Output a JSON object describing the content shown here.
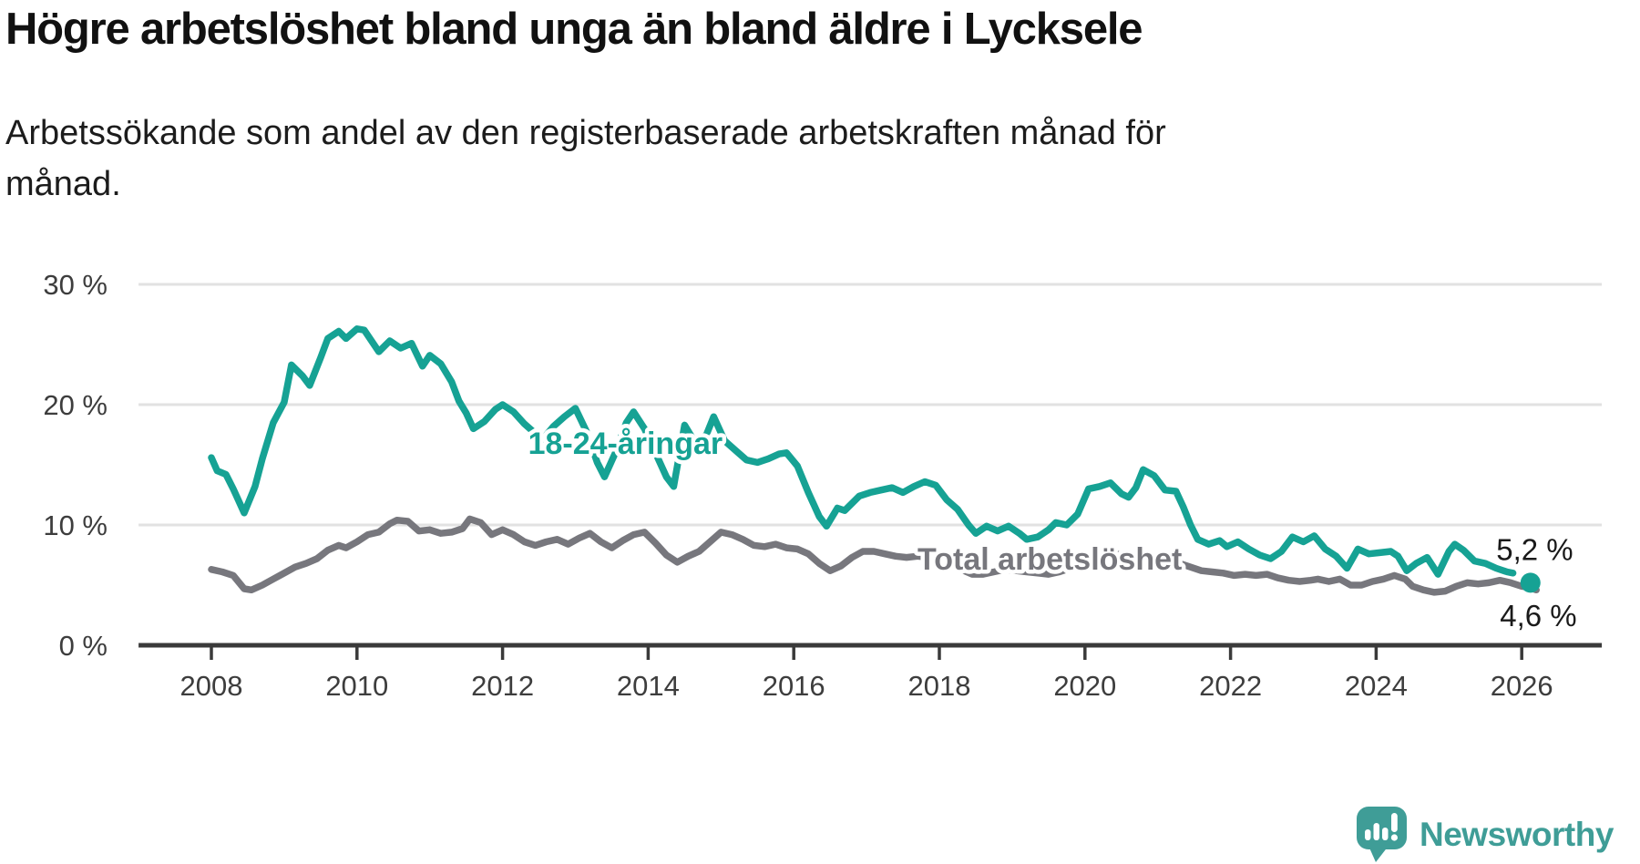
{
  "header": {
    "title": "Högre arbetslöshet bland unga än bland äldre i Lycksele",
    "subtitle_lines": [
      "Arbetssökande som andel av den registerbaserade arbetskraften månad för",
      "månad."
    ]
  },
  "footer": {
    "brand": "Newsworthy",
    "logo_icon": "newsworthy-speech-bubble-bar-chart-icon"
  },
  "colors": {
    "accent_teal": "#16a294",
    "line_gray": "#77777d",
    "grid": "#e2e2e2",
    "axis": "#3a3a3a",
    "text": "#1a1a1a",
    "brand_teal": "#3f9d97"
  },
  "chart_data": {
    "type": "line",
    "title": "Högre arbetslöshet bland unga än bland äldre i Lycksele",
    "xlabel": "",
    "ylabel": "",
    "unit": "%",
    "ylim": [
      0,
      32
    ],
    "yticks": [
      0,
      10,
      20,
      30
    ],
    "ytick_suffix": " %",
    "xticks": [
      2008,
      2010,
      2012,
      2014,
      2016,
      2018,
      2020,
      2022,
      2024,
      2026
    ],
    "xlim": [
      2007.0,
      2027.1
    ],
    "grid": "horizontal",
    "legend": "inline-labels",
    "series": [
      {
        "name": "Total arbetslöshet",
        "slug": "total-line",
        "color": "#77777d",
        "end_value_label": "4,6 %",
        "points": [
          [
            2008.0,
            6.3
          ],
          [
            2008.15,
            6.1
          ],
          [
            2008.3,
            5.8
          ],
          [
            2008.45,
            4.7
          ],
          [
            2008.55,
            4.6
          ],
          [
            2008.7,
            5.0
          ],
          [
            2008.85,
            5.5
          ],
          [
            2009.0,
            6.0
          ],
          [
            2009.15,
            6.5
          ],
          [
            2009.3,
            6.8
          ],
          [
            2009.45,
            7.2
          ],
          [
            2009.6,
            7.9
          ],
          [
            2009.75,
            8.3
          ],
          [
            2009.85,
            8.1
          ],
          [
            2010.0,
            8.6
          ],
          [
            2010.15,
            9.2
          ],
          [
            2010.3,
            9.4
          ],
          [
            2010.45,
            10.1
          ],
          [
            2010.55,
            10.4
          ],
          [
            2010.7,
            10.3
          ],
          [
            2010.85,
            9.5
          ],
          [
            2011.0,
            9.6
          ],
          [
            2011.15,
            9.3
          ],
          [
            2011.3,
            9.4
          ],
          [
            2011.45,
            9.7
          ],
          [
            2011.55,
            10.5
          ],
          [
            2011.7,
            10.2
          ],
          [
            2011.85,
            9.2
          ],
          [
            2012.0,
            9.6
          ],
          [
            2012.15,
            9.2
          ],
          [
            2012.3,
            8.6
          ],
          [
            2012.45,
            8.3
          ],
          [
            2012.6,
            8.6
          ],
          [
            2012.75,
            8.8
          ],
          [
            2012.9,
            8.4
          ],
          [
            2013.05,
            8.9
          ],
          [
            2013.2,
            9.3
          ],
          [
            2013.35,
            8.6
          ],
          [
            2013.5,
            8.1
          ],
          [
            2013.65,
            8.7
          ],
          [
            2013.8,
            9.2
          ],
          [
            2013.95,
            9.4
          ],
          [
            2014.1,
            8.5
          ],
          [
            2014.25,
            7.5
          ],
          [
            2014.4,
            6.9
          ],
          [
            2014.55,
            7.4
          ],
          [
            2014.7,
            7.8
          ],
          [
            2014.85,
            8.6
          ],
          [
            2015.0,
            9.4
          ],
          [
            2015.15,
            9.2
          ],
          [
            2015.3,
            8.8
          ],
          [
            2015.45,
            8.3
          ],
          [
            2015.6,
            8.2
          ],
          [
            2015.75,
            8.4
          ],
          [
            2015.9,
            8.1
          ],
          [
            2016.05,
            8.0
          ],
          [
            2016.2,
            7.6
          ],
          [
            2016.35,
            6.8
          ],
          [
            2016.5,
            6.2
          ],
          [
            2016.65,
            6.6
          ],
          [
            2016.8,
            7.3
          ],
          [
            2016.95,
            7.8
          ],
          [
            2017.1,
            7.8
          ],
          [
            2017.25,
            7.6
          ],
          [
            2017.4,
            7.4
          ],
          [
            2017.55,
            7.3
          ],
          [
            2017.7,
            7.4
          ],
          [
            2017.85,
            7.3
          ],
          [
            2018.0,
            7.0
          ],
          [
            2018.15,
            6.7
          ],
          [
            2018.3,
            6.3
          ],
          [
            2018.45,
            5.9
          ],
          [
            2018.6,
            5.9
          ],
          [
            2018.75,
            6.1
          ],
          [
            2018.9,
            6.3
          ],
          [
            2019.05,
            6.2
          ],
          [
            2019.2,
            6.1
          ],
          [
            2019.35,
            6.0
          ],
          [
            2019.5,
            5.9
          ],
          [
            2019.65,
            6.1
          ],
          [
            2019.8,
            6.4
          ],
          [
            2019.95,
            6.8
          ],
          [
            2020.1,
            7.2
          ],
          [
            2020.25,
            7.5
          ],
          [
            2020.4,
            7.6
          ],
          [
            2020.55,
            7.5
          ],
          [
            2020.7,
            7.3
          ],
          [
            2020.85,
            7.4
          ],
          [
            2021.0,
            7.3
          ],
          [
            2021.15,
            7.1
          ],
          [
            2021.3,
            6.8
          ],
          [
            2021.45,
            6.5
          ],
          [
            2021.6,
            6.2
          ],
          [
            2021.75,
            6.1
          ],
          [
            2021.9,
            6.0
          ],
          [
            2022.05,
            5.8
          ],
          [
            2022.2,
            5.9
          ],
          [
            2022.35,
            5.8
          ],
          [
            2022.5,
            5.9
          ],
          [
            2022.65,
            5.6
          ],
          [
            2022.8,
            5.4
          ],
          [
            2022.95,
            5.3
          ],
          [
            2023.1,
            5.4
          ],
          [
            2023.2,
            5.5
          ],
          [
            2023.35,
            5.3
          ],
          [
            2023.5,
            5.5
          ],
          [
            2023.65,
            5.0
          ],
          [
            2023.8,
            5.0
          ],
          [
            2023.95,
            5.3
          ],
          [
            2024.1,
            5.5
          ],
          [
            2024.25,
            5.8
          ],
          [
            2024.4,
            5.5
          ],
          [
            2024.5,
            4.9
          ],
          [
            2024.65,
            4.6
          ],
          [
            2024.8,
            4.4
          ],
          [
            2024.95,
            4.5
          ],
          [
            2025.1,
            4.9
          ],
          [
            2025.25,
            5.2
          ],
          [
            2025.4,
            5.1
          ],
          [
            2025.55,
            5.2
          ],
          [
            2025.7,
            5.4
          ],
          [
            2025.85,
            5.2
          ],
          [
            2026.0,
            4.9
          ],
          [
            2026.1,
            4.8
          ],
          [
            2026.2,
            4.6
          ]
        ]
      },
      {
        "name": "18-24-åringar",
        "slug": "youth-line",
        "color": "#16a294",
        "end_value_label": "5,2 %",
        "end_dot": {
          "x": 2026.12,
          "y": 5.2,
          "r": 11
        },
        "points": [
          [
            2008.0,
            15.6
          ],
          [
            2008.08,
            14.5
          ],
          [
            2008.2,
            14.2
          ],
          [
            2008.3,
            13.0
          ],
          [
            2008.45,
            11.0
          ],
          [
            2008.6,
            13.2
          ],
          [
            2008.7,
            15.5
          ],
          [
            2008.85,
            18.5
          ],
          [
            2009.0,
            20.2
          ],
          [
            2009.1,
            23.3
          ],
          [
            2009.25,
            22.4
          ],
          [
            2009.35,
            21.6
          ],
          [
            2009.5,
            23.9
          ],
          [
            2009.6,
            25.5
          ],
          [
            2009.75,
            26.1
          ],
          [
            2009.85,
            25.5
          ],
          [
            2010.0,
            26.3
          ],
          [
            2010.1,
            26.2
          ],
          [
            2010.3,
            24.4
          ],
          [
            2010.45,
            25.3
          ],
          [
            2010.6,
            24.7
          ],
          [
            2010.75,
            25.1
          ],
          [
            2010.9,
            23.2
          ],
          [
            2011.0,
            24.1
          ],
          [
            2011.15,
            23.4
          ],
          [
            2011.3,
            21.9
          ],
          [
            2011.4,
            20.3
          ],
          [
            2011.5,
            19.3
          ],
          [
            2011.6,
            18.0
          ],
          [
            2011.75,
            18.6
          ],
          [
            2011.9,
            19.6
          ],
          [
            2012.0,
            20.0
          ],
          [
            2012.15,
            19.4
          ],
          [
            2012.3,
            18.4
          ],
          [
            2012.45,
            17.6
          ],
          [
            2012.55,
            17.1
          ],
          [
            2012.7,
            18.2
          ],
          [
            2012.85,
            19.0
          ],
          [
            2013.0,
            19.7
          ],
          [
            2013.15,
            17.8
          ],
          [
            2013.3,
            15.2
          ],
          [
            2013.4,
            14.0
          ],
          [
            2013.55,
            16.0
          ],
          [
            2013.7,
            18.5
          ],
          [
            2013.8,
            19.4
          ],
          [
            2013.95,
            18.0
          ],
          [
            2014.1,
            16.0
          ],
          [
            2014.25,
            14.0
          ],
          [
            2014.35,
            13.2
          ],
          [
            2014.5,
            18.3
          ],
          [
            2014.65,
            16.8
          ],
          [
            2014.8,
            17.5
          ],
          [
            2014.9,
            19.0
          ],
          [
            2015.05,
            17.0
          ],
          [
            2015.2,
            16.2
          ],
          [
            2015.35,
            15.4
          ],
          [
            2015.5,
            15.2
          ],
          [
            2015.65,
            15.5
          ],
          [
            2015.8,
            15.9
          ],
          [
            2015.9,
            16.0
          ],
          [
            2016.05,
            14.9
          ],
          [
            2016.2,
            12.7
          ],
          [
            2016.35,
            10.7
          ],
          [
            2016.45,
            9.9
          ],
          [
            2016.6,
            11.4
          ],
          [
            2016.7,
            11.2
          ],
          [
            2016.9,
            12.4
          ],
          [
            2017.05,
            12.7
          ],
          [
            2017.2,
            12.9
          ],
          [
            2017.35,
            13.1
          ],
          [
            2017.5,
            12.7
          ],
          [
            2017.65,
            13.2
          ],
          [
            2017.8,
            13.6
          ],
          [
            2017.95,
            13.3
          ],
          [
            2018.1,
            12.1
          ],
          [
            2018.25,
            11.3
          ],
          [
            2018.4,
            10.0
          ],
          [
            2018.5,
            9.3
          ],
          [
            2018.65,
            9.9
          ],
          [
            2018.8,
            9.5
          ],
          [
            2018.95,
            9.9
          ],
          [
            2019.1,
            9.3
          ],
          [
            2019.2,
            8.8
          ],
          [
            2019.35,
            9.0
          ],
          [
            2019.5,
            9.6
          ],
          [
            2019.6,
            10.2
          ],
          [
            2019.75,
            10.0
          ],
          [
            2019.9,
            10.9
          ],
          [
            2020.05,
            13.0
          ],
          [
            2020.2,
            13.2
          ],
          [
            2020.35,
            13.5
          ],
          [
            2020.5,
            12.6
          ],
          [
            2020.6,
            12.3
          ],
          [
            2020.7,
            13.1
          ],
          [
            2020.8,
            14.6
          ],
          [
            2020.95,
            14.1
          ],
          [
            2021.1,
            12.9
          ],
          [
            2021.25,
            12.8
          ],
          [
            2021.35,
            11.5
          ],
          [
            2021.45,
            10.0
          ],
          [
            2021.55,
            8.8
          ],
          [
            2021.7,
            8.4
          ],
          [
            2021.85,
            8.7
          ],
          [
            2021.95,
            8.2
          ],
          [
            2022.1,
            8.6
          ],
          [
            2022.25,
            8.0
          ],
          [
            2022.4,
            7.5
          ],
          [
            2022.55,
            7.2
          ],
          [
            2022.7,
            7.8
          ],
          [
            2022.85,
            9.0
          ],
          [
            2023.0,
            8.6
          ],
          [
            2023.15,
            9.1
          ],
          [
            2023.3,
            8.0
          ],
          [
            2023.45,
            7.4
          ],
          [
            2023.6,
            6.4
          ],
          [
            2023.75,
            8.0
          ],
          [
            2023.9,
            7.6
          ],
          [
            2024.05,
            7.7
          ],
          [
            2024.2,
            7.8
          ],
          [
            2024.3,
            7.4
          ],
          [
            2024.42,
            6.2
          ],
          [
            2024.55,
            6.8
          ],
          [
            2024.7,
            7.3
          ],
          [
            2024.85,
            5.9
          ],
          [
            2025.0,
            7.8
          ],
          [
            2025.08,
            8.4
          ],
          [
            2025.2,
            7.9
          ],
          [
            2025.35,
            7.0
          ],
          [
            2025.5,
            6.8
          ],
          [
            2025.65,
            6.4
          ],
          [
            2025.8,
            6.1
          ],
          [
            2025.88,
            6.0
          ]
        ]
      }
    ],
    "annotations": [
      {
        "text": "18-24-åringar",
        "x": 2012.35,
        "y": 15.9,
        "color": "#16a294",
        "bold": true,
        "halo": true,
        "anchor": "start",
        "size": 34
      },
      {
        "text": "Total arbetslöshet",
        "x": 2017.7,
        "y": 6.3,
        "color": "#77777d",
        "bold": true,
        "halo": true,
        "anchor": "start",
        "size": 34
      },
      {
        "text": "5,2 %",
        "x": 2025.65,
        "y": 7.1,
        "color": "#1a1a1a",
        "bold": false,
        "halo": false,
        "anchor": "start",
        "size": 33
      },
      {
        "text": "4,6 %",
        "x": 2025.7,
        "y": 1.6,
        "color": "#1a1a1a",
        "bold": false,
        "halo": false,
        "anchor": "start",
        "size": 33
      }
    ]
  }
}
